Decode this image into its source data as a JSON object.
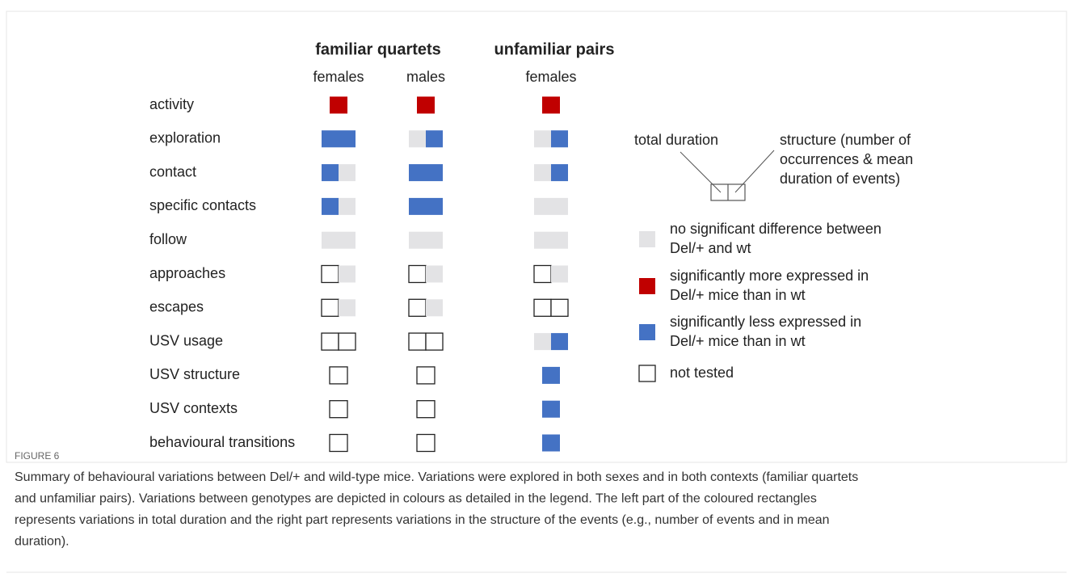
{
  "figure": {
    "headers": [
      {
        "title": "familiar quartets",
        "subs": [
          "females",
          "males"
        ]
      },
      {
        "title": "unfamiliar pairs",
        "subs": [
          "females"
        ]
      }
    ],
    "colors": {
      "grey": "#e3e3e5",
      "blue": "#4472c4",
      "red": "#c00000",
      "none": "#ffffff"
    },
    "rows": [
      {
        "label": "activity",
        "cells": [
          [
            "red"
          ],
          [
            "red"
          ],
          [
            "red"
          ]
        ]
      },
      {
        "label": "exploration",
        "cells": [
          [
            "blue",
            "blue"
          ],
          [
            "grey",
            "blue"
          ],
          [
            "grey",
            "blue"
          ]
        ]
      },
      {
        "label": "contact",
        "cells": [
          [
            "blue",
            "grey"
          ],
          [
            "blue",
            "blue"
          ],
          [
            "grey",
            "blue"
          ]
        ]
      },
      {
        "label": "specific contacts",
        "cells": [
          [
            "blue",
            "grey"
          ],
          [
            "blue",
            "blue"
          ],
          [
            "grey",
            "grey"
          ]
        ]
      },
      {
        "label": "follow",
        "cells": [
          [
            "grey",
            "grey"
          ],
          [
            "grey",
            "grey"
          ],
          [
            "grey",
            "grey"
          ]
        ]
      },
      {
        "label": "approaches",
        "cells": [
          [
            "none",
            "grey"
          ],
          [
            "none",
            "grey"
          ],
          [
            "none",
            "grey"
          ]
        ]
      },
      {
        "label": "escapes",
        "cells": [
          [
            "none",
            "grey"
          ],
          [
            "none",
            "grey"
          ],
          [
            "none",
            "none"
          ]
        ]
      },
      {
        "label": "USV usage",
        "cells": [
          [
            "none",
            "none"
          ],
          [
            "none",
            "none"
          ],
          [
            "grey",
            "blue"
          ]
        ]
      },
      {
        "label": "USV structure",
        "cells": [
          [
            "none"
          ],
          [
            "none"
          ],
          [
            "blue"
          ]
        ]
      },
      {
        "label": "USV contexts",
        "cells": [
          [
            "none"
          ],
          [
            "none"
          ],
          [
            "blue"
          ]
        ]
      },
      {
        "label": "behavioural transitions",
        "cells": [
          [
            "none"
          ],
          [
            "none"
          ],
          [
            "blue"
          ]
        ]
      }
    ],
    "legend": {
      "left_label": "total duration",
      "right_label": [
        "structure (number of",
        "occurrences & mean",
        "duration of events)"
      ],
      "items": [
        {
          "color": "grey",
          "lines": [
            "no significant difference between",
            "Del/+ and wt"
          ]
        },
        {
          "color": "red",
          "lines": [
            "significantly more expressed in",
            "Del/+ mice than in wt"
          ]
        },
        {
          "color": "blue",
          "lines": [
            "significantly less expressed in",
            "Del/+ mice than in wt"
          ]
        },
        {
          "color": "none",
          "lines": [
            "not tested"
          ]
        }
      ]
    }
  },
  "caption": {
    "label": "FIGURE 6",
    "lines": [
      "Summary of behavioural variations between Del/+ and wild-type mice. Variations were explored in both sexes and in both contexts (familiar quartets",
      "and unfamiliar pairs). Variations between genotypes are depicted in colours as detailed in the legend. The left part of the coloured rectangles",
      "represents variations in total duration and the right part represents variations in the structure of the events (e.g., number of events and in mean",
      "duration)."
    ]
  }
}
